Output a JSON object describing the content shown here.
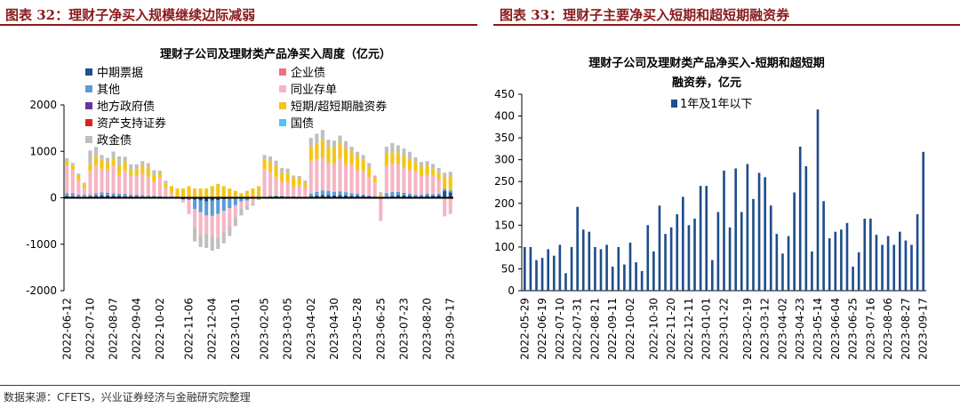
{
  "headers": {
    "left": "图表 32：理财子净买入规模继续边际减弱",
    "right": "图表 33：理财子主要净买入短期和超短期融资券"
  },
  "source": "数据来源：CFETS，兴业证券经济与金融研究院整理",
  "colors": {
    "header": "#8b1a1a",
    "mtn": "#1f4e8c",
    "corp": "#f07080",
    "other": "#5b9bd5",
    "ncd": "#f6b5c4",
    "local": "#7030a0",
    "scp": "#f5c518",
    "abs": "#e02020",
    "treasury": "#4fc3f7",
    "policy": "#bfbfbf",
    "bar2": "#1f4e8c"
  },
  "chart_data": [
    {
      "type": "bar",
      "stacked": true,
      "title": "理财子公司及理财类产品净买入周度（亿元）",
      "ylim": [
        -2000,
        2000
      ],
      "yticks": [
        2000,
        1000,
        0,
        -1000,
        -2000
      ],
      "legend_position": "top-left",
      "x_tick_labels": [
        "2022-06-12",
        "2022-07-10",
        "2022-08-07",
        "2022-09-04",
        "2022-10-02",
        "2022-11-06",
        "2022-12-04",
        "2023-01-01",
        "2023-02-05",
        "2023-03-05",
        "2023-04-02",
        "2023-04-30",
        "2023-05-28",
        "2023-06-25",
        "2023-07-23",
        "2023-08-20",
        "2023-09-17"
      ],
      "x": [
        "2022-06-12",
        "2022-06-19",
        "2022-06-26",
        "2022-07-03",
        "2022-07-10",
        "2022-07-17",
        "2022-07-24",
        "2022-07-31",
        "2022-08-07",
        "2022-08-14",
        "2022-08-21",
        "2022-08-28",
        "2022-09-04",
        "2022-09-11",
        "2022-09-18",
        "2022-09-25",
        "2022-10-02",
        "2022-10-09",
        "2022-10-16",
        "2022-10-23",
        "2022-10-30",
        "2022-11-06",
        "2022-11-13",
        "2022-11-20",
        "2022-11-27",
        "2022-12-04",
        "2022-12-11",
        "2022-12-18",
        "2022-12-25",
        "2023-01-01",
        "2023-01-08",
        "2023-01-15",
        "2023-01-22",
        "2023-01-29",
        "2023-02-05",
        "2023-02-12",
        "2023-02-19",
        "2023-02-26",
        "2023-03-05",
        "2023-03-12",
        "2023-03-19",
        "2023-03-26",
        "2023-04-02",
        "2023-04-09",
        "2023-04-16",
        "2023-04-23",
        "2023-04-30",
        "2023-05-07",
        "2023-05-14",
        "2023-05-21",
        "2023-05-28",
        "2023-06-04",
        "2023-06-11",
        "2023-06-18",
        "2023-06-25",
        "2023-07-02",
        "2023-07-09",
        "2023-07-16",
        "2023-07-23",
        "2023-07-30",
        "2023-08-06",
        "2023-08-13",
        "2023-08-20",
        "2023-08-27",
        "2023-09-03",
        "2023-09-10",
        "2023-09-17"
      ],
      "series": [
        {
          "name": "中期票据",
          "key": "mtn",
          "values": [
            40,
            30,
            20,
            25,
            30,
            45,
            60,
            50,
            45,
            40,
            35,
            30,
            30,
            25,
            20,
            20,
            15,
            10,
            0,
            0,
            -30,
            -20,
            -40,
            -60,
            -80,
            -60,
            -50,
            -30,
            -20,
            -10,
            0,
            -10,
            0,
            0,
            10,
            20,
            30,
            30,
            20,
            20,
            10,
            10,
            30,
            50,
            60,
            60,
            50,
            60,
            50,
            40,
            40,
            40,
            30,
            20,
            10,
            20,
            40,
            60,
            50,
            40,
            30,
            30,
            40,
            40,
            50,
            150,
            120
          ]
        },
        {
          "name": "企业债",
          "key": "corp",
          "values": [
            10,
            10,
            10,
            10,
            10,
            10,
            10,
            10,
            10,
            10,
            10,
            10,
            10,
            5,
            5,
            5,
            5,
            0,
            0,
            0,
            0,
            0,
            0,
            0,
            0,
            0,
            0,
            0,
            0,
            0,
            0,
            0,
            0,
            0,
            0,
            0,
            0,
            0,
            0,
            0,
            0,
            0,
            0,
            0,
            0,
            0,
            0,
            0,
            0,
            0,
            0,
            0,
            0,
            0,
            0,
            0,
            0,
            0,
            0,
            0,
            0,
            0,
            0,
            0,
            0,
            0,
            0
          ]
        },
        {
          "name": "其他",
          "key": "other",
          "values": [
            50,
            60,
            40,
            30,
            30,
            40,
            50,
            50,
            40,
            40,
            40,
            30,
            30,
            30,
            20,
            20,
            15,
            10,
            0,
            0,
            -10,
            -30,
            -200,
            -250,
            -300,
            -330,
            -300,
            -250,
            -200,
            -150,
            -80,
            -50,
            -20,
            0,
            10,
            20,
            20,
            10,
            10,
            10,
            10,
            10,
            60,
            80,
            100,
            90,
            80,
            80,
            70,
            60,
            50,
            30,
            20,
            10,
            10,
            80,
            90,
            70,
            60,
            50,
            40,
            40,
            50,
            40,
            40,
            40,
            40
          ]
        },
        {
          "name": "同业存单",
          "key": "ncd",
          "values": [
            600,
            500,
            300,
            150,
            500,
            600,
            500,
            500,
            600,
            400,
            500,
            400,
            400,
            450,
            400,
            300,
            400,
            200,
            100,
            0,
            -60,
            -300,
            -400,
            -500,
            -400,
            -450,
            -500,
            -450,
            -400,
            -250,
            -150,
            -100,
            -100,
            0,
            600,
            500,
            400,
            300,
            300,
            200,
            250,
            200,
            700,
            700,
            700,
            600,
            600,
            700,
            600,
            600,
            500,
            500,
            400,
            300,
            -500,
            600,
            600,
            600,
            550,
            500,
            500,
            400,
            400,
            400,
            300,
            -400,
            -350
          ]
        },
        {
          "name": "地方政府债",
          "key": "local",
          "values": [
            0,
            0,
            0,
            0,
            0,
            0,
            0,
            0,
            0,
            0,
            0,
            0,
            0,
            0,
            0,
            0,
            0,
            0,
            0,
            0,
            0,
            0,
            0,
            0,
            0,
            0,
            0,
            0,
            0,
            0,
            0,
            0,
            0,
            0,
            0,
            0,
            0,
            0,
            0,
            0,
            0,
            0,
            0,
            0,
            0,
            0,
            0,
            0,
            0,
            0,
            0,
            0,
            0,
            0,
            0,
            0,
            0,
            0,
            0,
            0,
            0,
            0,
            0,
            0,
            0,
            0,
            0
          ]
        },
        {
          "name": "短期/超短期融资券",
          "key": "scp",
          "values": [
            100,
            100,
            100,
            80,
            150,
            200,
            200,
            150,
            150,
            200,
            200,
            150,
            150,
            180,
            200,
            150,
            100,
            100,
            150,
            200,
            200,
            250,
            200,
            200,
            200,
            250,
            300,
            250,
            200,
            150,
            100,
            150,
            200,
            250,
            200,
            250,
            250,
            200,
            200,
            200,
            150,
            100,
            300,
            350,
            400,
            350,
            350,
            350,
            350,
            300,
            300,
            250,
            200,
            100,
            50,
            250,
            250,
            250,
            250,
            250,
            200,
            200,
            200,
            150,
            150,
            250,
            300
          ]
        },
        {
          "name": "资产支持证券",
          "key": "abs",
          "values": [
            0,
            0,
            0,
            0,
            0,
            0,
            0,
            0,
            0,
            0,
            0,
            0,
            0,
            0,
            0,
            0,
            0,
            0,
            0,
            0,
            0,
            0,
            0,
            0,
            0,
            0,
            0,
            0,
            0,
            0,
            0,
            0,
            0,
            0,
            0,
            0,
            0,
            0,
            0,
            0,
            0,
            0,
            0,
            0,
            0,
            0,
            0,
            0,
            0,
            0,
            0,
            0,
            0,
            0,
            0,
            0,
            0,
            0,
            0,
            0,
            0,
            0,
            0,
            0,
            0,
            0,
            0
          ]
        },
        {
          "name": "国债",
          "key": "treasury",
          "values": [
            0,
            0,
            0,
            0,
            0,
            0,
            0,
            0,
            0,
            0,
            0,
            0,
            0,
            0,
            0,
            0,
            0,
            0,
            0,
            0,
            0,
            0,
            0,
            0,
            0,
            0,
            0,
            0,
            0,
            0,
            0,
            0,
            0,
            0,
            0,
            0,
            0,
            0,
            0,
            0,
            0,
            0,
            0,
            0,
            0,
            0,
            0,
            0,
            0,
            0,
            0,
            0,
            0,
            0,
            0,
            0,
            0,
            0,
            0,
            0,
            0,
            0,
            0,
            0,
            0,
            0,
            0
          ]
        },
        {
          "name": "政金债",
          "key": "policy",
          "values": [
            50,
            50,
            50,
            30,
            300,
            200,
            100,
            100,
            150,
            200,
            100,
            100,
            100,
            100,
            100,
            100,
            50,
            50,
            0,
            0,
            0,
            0,
            -300,
            -250,
            -300,
            -300,
            -250,
            -250,
            -200,
            -200,
            -150,
            -100,
            -50,
            -50,
            100,
            100,
            100,
            100,
            100,
            50,
            50,
            50,
            200,
            200,
            200,
            150,
            150,
            150,
            150,
            100,
            100,
            100,
            100,
            50,
            50,
            150,
            200,
            150,
            150,
            150,
            100,
            100,
            100,
            100,
            100,
            100,
            100
          ]
        }
      ]
    },
    {
      "type": "bar",
      "title": "理财子公司及理财类产品净买入-短期和超短期融资券，亿元",
      "title_lines": [
        "理财子公司及理财类产品净买入-短期和超短期",
        "融资券，亿元"
      ],
      "ylim": [
        0,
        450
      ],
      "yticks": [
        450,
        400,
        350,
        300,
        250,
        200,
        150,
        100,
        50,
        0
      ],
      "legend_position": "top-right",
      "x_tick_labels": [
        "2022-05-29",
        "2022-06-19",
        "2022-07-10",
        "2022-07-31",
        "2022-08-21",
        "2022-09-11",
        "2022-10-02",
        "2022-10-30",
        "2022-11-20",
        "2022-12-11",
        "2023-01-01",
        "2023-01-22",
        "2023-02-19",
        "2023-03-12",
        "2023-04-02",
        "2023-04-23",
        "2023-05-14",
        "2023-06-04",
        "2023-06-25",
        "2023-07-16",
        "2023-08-06",
        "2023-08-27",
        "2023-09-17"
      ],
      "x": [
        "2022-05-29",
        "2022-06-05",
        "2022-06-12",
        "2022-06-19",
        "2022-06-26",
        "2022-07-03",
        "2022-07-10",
        "2022-07-17",
        "2022-07-24",
        "2022-07-31",
        "2022-08-07",
        "2022-08-14",
        "2022-08-21",
        "2022-08-28",
        "2022-09-04",
        "2022-09-11",
        "2022-09-18",
        "2022-09-25",
        "2022-10-02",
        "2022-10-09",
        "2022-10-16",
        "2022-10-23",
        "2022-10-30",
        "2022-11-06",
        "2022-11-13",
        "2022-11-20",
        "2022-11-27",
        "2022-12-04",
        "2022-12-11",
        "2022-12-18",
        "2022-12-25",
        "2023-01-01",
        "2023-01-08",
        "2023-01-15",
        "2023-01-22",
        "2023-01-29",
        "2023-02-05",
        "2023-02-12",
        "2023-02-19",
        "2023-02-26",
        "2023-03-05",
        "2023-03-12",
        "2023-03-19",
        "2023-03-26",
        "2023-04-02",
        "2023-04-09",
        "2023-04-16",
        "2023-04-23",
        "2023-04-30",
        "2023-05-07",
        "2023-05-14",
        "2023-05-21",
        "2023-05-28",
        "2023-06-04",
        "2023-06-11",
        "2023-06-18",
        "2023-06-25",
        "2023-07-02",
        "2023-07-09",
        "2023-07-16",
        "2023-07-23",
        "2023-07-30",
        "2023-08-06",
        "2023-08-13",
        "2023-08-20",
        "2023-08-27",
        "2023-09-03",
        "2023-09-10",
        "2023-09-17"
      ],
      "series": [
        {
          "name": "1年及1年以下",
          "values": [
            100,
            100,
            70,
            75,
            95,
            80,
            105,
            40,
            100,
            192,
            140,
            135,
            100,
            95,
            105,
            55,
            100,
            60,
            110,
            65,
            45,
            150,
            90,
            195,
            130,
            145,
            175,
            215,
            150,
            165,
            240,
            240,
            70,
            180,
            275,
            145,
            280,
            180,
            290,
            210,
            270,
            260,
            195,
            130,
            85,
            125,
            225,
            330,
            285,
            90,
            415,
            205,
            120,
            135,
            140,
            155,
            55,
            88,
            165,
            165,
            128,
            105,
            125,
            105,
            135,
            115,
            105,
            175,
            318
          ]
        }
      ]
    }
  ]
}
